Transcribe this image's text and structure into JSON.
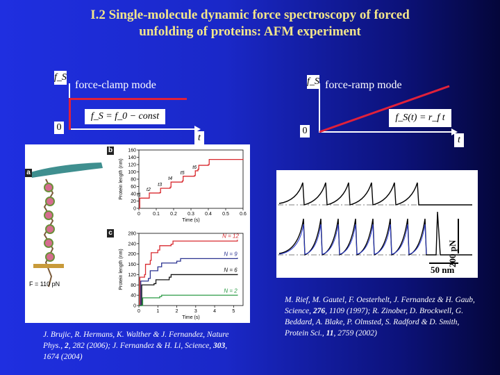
{
  "slide": {
    "title_line1": "I.2 Single-molecule dynamic force spectroscopy of forced",
    "title_line2": "unfolding of proteins: AFM experiment"
  },
  "left_diagram": {
    "y_label": "f_S",
    "mode_label": "force-clamp mode",
    "origin_label": "0",
    "x_label": "t",
    "equation": "f_S = f_0 − const",
    "line_color": "#e0213a"
  },
  "right_diagram": {
    "y_label": "f_S",
    "mode_label": "force-ramp mode",
    "origin_label": "0",
    "x_label": "t",
    "equation": "f_S(t) = r_f t",
    "line_color": "#e0213a"
  },
  "left_figure": {
    "panel_a_label": "a",
    "panel_b_label": "b",
    "panel_c_label": "c",
    "force_label": "F = 110 pN",
    "chart_data": [
      {
        "type": "line",
        "xlabel": "Time (s)",
        "ylabel": "Protein length (nm)",
        "x_ticks": [
          "0",
          "0.1",
          "0.2",
          "0.3",
          "0.4",
          "0.5",
          "0.6"
        ],
        "y_ticks": [
          "0",
          "20",
          "40",
          "60",
          "80",
          "100",
          "120",
          "140",
          "160"
        ],
        "xlim": [
          0,
          0.6
        ],
        "ylim": [
          0,
          160
        ],
        "annotations": [
          "t1",
          "t2",
          "t3",
          "t4",
          "t5",
          "t6"
        ],
        "series": [
          {
            "color": "#d8282e",
            "points": [
              [
                0,
                0
              ],
              [
                0.005,
                0
              ],
              [
                0.005,
                28
              ],
              [
                0.055,
                28
              ],
              [
                0.06,
                42
              ],
              [
                0.12,
                43
              ],
              [
                0.125,
                55
              ],
              [
                0.18,
                58
              ],
              [
                0.185,
                72
              ],
              [
                0.25,
                75
              ],
              [
                0.255,
                88
              ],
              [
                0.32,
                90
              ],
              [
                0.325,
                103
              ],
              [
                0.34,
                107
              ],
              [
                0.345,
                118
              ],
              [
                0.4,
                120
              ],
              [
                0.405,
                134
              ],
              [
                0.6,
                136
              ]
            ]
          }
        ]
      },
      {
        "type": "line",
        "xlabel": "Time (s)",
        "ylabel": "Protein length (nm)",
        "x_ticks": [
          "0",
          "1",
          "2",
          "3",
          "4",
          "5"
        ],
        "y_ticks": [
          "0",
          "40",
          "80",
          "120",
          "160",
          "200",
          "240",
          "280"
        ],
        "xlim": [
          0,
          5.5
        ],
        "ylim": [
          0,
          280
        ],
        "series": [
          {
            "name": "N = 12",
            "color": "#d8282e",
            "points": [
              [
                0,
                0
              ],
              [
                0.05,
                0
              ],
              [
                0.05,
                110
              ],
              [
                0.3,
                120
              ],
              [
                0.35,
                160
              ],
              [
                0.6,
                175
              ],
              [
                0.65,
                205
              ],
              [
                1.0,
                215
              ],
              [
                1.1,
                232
              ],
              [
                1.7,
                238
              ],
              [
                1.8,
                250
              ],
              [
                5.2,
                255
              ]
            ]
          },
          {
            "name": "N = 9",
            "color": "#2a3290",
            "points": [
              [
                0,
                0
              ],
              [
                0.1,
                0
              ],
              [
                0.1,
                95
              ],
              [
                0.5,
                105
              ],
              [
                0.6,
                135
              ],
              [
                1.0,
                150
              ],
              [
                1.2,
                165
              ],
              [
                2.0,
                172
              ],
              [
                2.2,
                182
              ],
              [
                5.2,
                185
              ]
            ]
          },
          {
            "name": "N = 6",
            "color": "#111111",
            "points": [
              [
                0,
                0
              ],
              [
                0.15,
                0
              ],
              [
                0.15,
                80
              ],
              [
                0.8,
                85
              ],
              [
                0.9,
                100
              ],
              [
                1.6,
                110
              ],
              [
                1.7,
                120
              ],
              [
                5.2,
                122
              ]
            ]
          },
          {
            "name": "N = 2",
            "color": "#2a9a44",
            "points": [
              [
                0,
                0
              ],
              [
                0.2,
                0
              ],
              [
                0.2,
                30
              ],
              [
                1.1,
                35
              ],
              [
                1.2,
                40
              ],
              [
                5.2,
                42
              ]
            ]
          }
        ]
      }
    ],
    "citation": {
      "part1": "J. Brujic, R. Hermans, K. Walther & J. Fernandez, Nature Phys., ",
      "vol1": "2",
      "part2": ", 282 (2006); J. Fernandez & H. Li, Science, ",
      "vol2": "303",
      "part3": ", 1674 (2004)"
    }
  },
  "right_figure": {
    "scale_y_label": "200 pN",
    "scale_x_label": "50 nm",
    "trace_count_top": 6,
    "trace_count_bottom": 8,
    "citation": {
      "part1": "M. Rief, M. Gautel, F. Oesterhelt, J. Fernandez & H. Gaub, Science, ",
      "vol1": "276",
      "part2": ", 1109 (1997); R. Zinober, D. Brockwell, G. Beddard, A. Blake, P. Olmsted, S. Radford & D. Smith, Protein Sci., ",
      "vol2": "11",
      "part3": ", 2759 (2002)"
    }
  }
}
